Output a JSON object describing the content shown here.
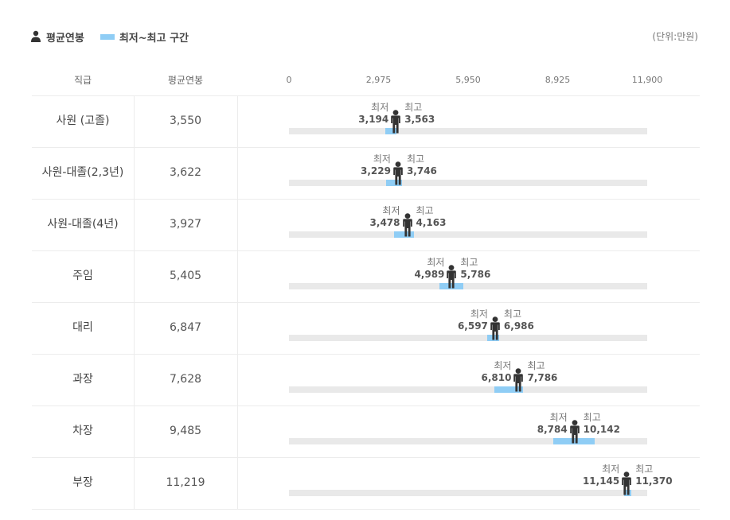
{
  "legend": {
    "avg_label": "평균연봉",
    "range_label": "최저~최고 구간"
  },
  "unit_label": "(단위:만원)",
  "header": {
    "grade": "직급",
    "avg": "평균연봉"
  },
  "colors": {
    "range": "#8fcdf5",
    "track": "#e9e9e9",
    "person": "#333333"
  },
  "chart_data": {
    "type": "range-bar",
    "x_ticks": [
      "0",
      "2,975",
      "5,950",
      "8,925",
      "11,900"
    ],
    "xlim": [
      0,
      11900
    ],
    "min_word": "최저",
    "max_word": "최고",
    "rows": [
      {
        "grade": "사원 (고졸)",
        "avg": 3550,
        "avg_label": "3,550",
        "min": 3194,
        "min_label": "3,194",
        "max": 3563,
        "max_label": "3,563"
      },
      {
        "grade": "사원-대졸(2,3년)",
        "avg": 3622,
        "avg_label": "3,622",
        "min": 3229,
        "min_label": "3,229",
        "max": 3746,
        "max_label": "3,746"
      },
      {
        "grade": "사원-대졸(4년)",
        "avg": 3927,
        "avg_label": "3,927",
        "min": 3478,
        "min_label": "3,478",
        "max": 4163,
        "max_label": "4,163"
      },
      {
        "grade": "주임",
        "avg": 5405,
        "avg_label": "5,405",
        "min": 4989,
        "min_label": "4,989",
        "max": 5786,
        "max_label": "5,786"
      },
      {
        "grade": "대리",
        "avg": 6847,
        "avg_label": "6,847",
        "min": 6597,
        "min_label": "6,597",
        "max": 6986,
        "max_label": "6,986"
      },
      {
        "grade": "과장",
        "avg": 7628,
        "avg_label": "7,628",
        "min": 6810,
        "min_label": "6,810",
        "max": 7786,
        "max_label": "7,786"
      },
      {
        "grade": "차장",
        "avg": 9485,
        "avg_label": "9,485",
        "min": 8784,
        "min_label": "8,784",
        "max": 10142,
        "max_label": "10,142"
      },
      {
        "grade": "부장",
        "avg": 11219,
        "avg_label": "11,219",
        "min": 11145,
        "min_label": "11,145",
        "max": 11370,
        "max_label": "11,370"
      }
    ]
  }
}
